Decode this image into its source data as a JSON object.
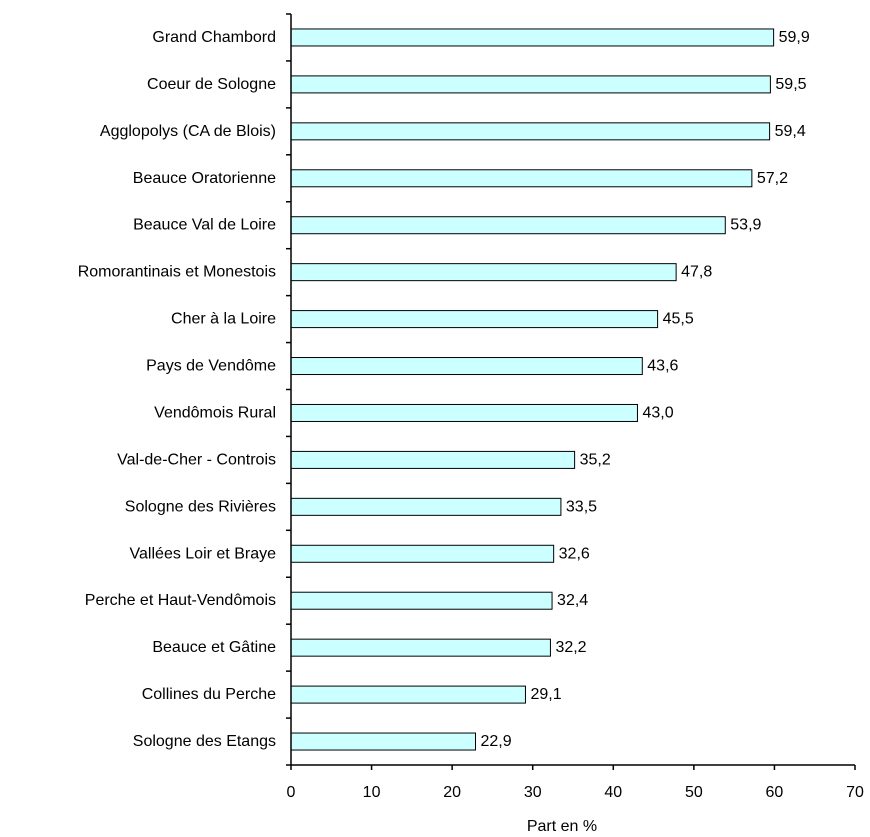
{
  "chart_data": {
    "type": "bar",
    "orientation": "horizontal",
    "categories": [
      "Grand Chambord",
      "Coeur de Sologne",
      "Agglopolys (CA de Blois)",
      "Beauce Oratorienne",
      "Beauce Val de Loire",
      "Romorantinais et Monestois",
      "Cher à la Loire",
      "Pays de Vendôme",
      "Vendômois Rural",
      "Val-de-Cher - Controis",
      "Sologne des Rivières",
      "Vallées Loir et Braye",
      "Perche et Haut-Vendômois",
      "Beauce et Gâtine",
      "Collines du Perche",
      "Sologne des Etangs"
    ],
    "values": [
      59.9,
      59.5,
      59.4,
      57.2,
      53.9,
      47.8,
      45.5,
      43.6,
      43.0,
      35.2,
      33.5,
      32.6,
      32.4,
      32.2,
      29.1,
      22.9
    ],
    "value_labels": [
      "59,9",
      "59,5",
      "59,4",
      "57,2",
      "53,9",
      "47,8",
      "45,5",
      "43,6",
      "43,0",
      "35,2",
      "33,5",
      "32,6",
      "32,4",
      "32,2",
      "29,1",
      "22,9"
    ],
    "title": "",
    "xlabel": "Part en %",
    "ylabel": "",
    "xlim": [
      0,
      70
    ],
    "xticks": [
      0,
      10,
      20,
      30,
      40,
      50,
      60,
      70
    ],
    "grid": false,
    "legend": "none",
    "bar_color": "#ccffff",
    "edge_color": "#000000"
  }
}
